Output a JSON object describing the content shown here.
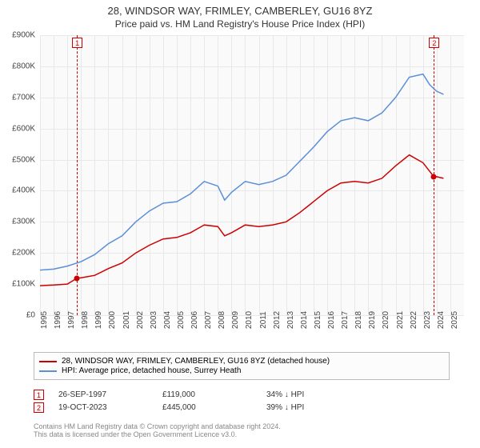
{
  "title": {
    "main": "28, WINDSOR WAY, FRIMLEY, CAMBERLEY, GU16 8YZ",
    "sub": "Price paid vs. HM Land Registry's House Price Index (HPI)"
  },
  "chart": {
    "type": "line",
    "background_color": "#fafafa",
    "grid_color": "#e8e8e8",
    "y": {
      "min": 0,
      "max": 900000,
      "step": 100000,
      "ticks": [
        0,
        100000,
        200000,
        300000,
        400000,
        500000,
        600000,
        700000,
        800000,
        900000
      ],
      "labels": [
        "£0",
        "£100K",
        "£200K",
        "£300K",
        "£400K",
        "£500K",
        "£600K",
        "£700K",
        "£800K",
        "£900K"
      ]
    },
    "x": {
      "min": 1995,
      "max": 2026,
      "ticks": [
        1995,
        1996,
        1997,
        1998,
        1999,
        2000,
        2001,
        2002,
        2003,
        2004,
        2005,
        2006,
        2007,
        2008,
        2009,
        2010,
        2011,
        2012,
        2013,
        2014,
        2015,
        2016,
        2017,
        2018,
        2019,
        2020,
        2021,
        2022,
        2023,
        2024,
        2025
      ],
      "labels": [
        "1995",
        "1996",
        "1997",
        "1998",
        "1999",
        "2000",
        "2001",
        "2002",
        "2003",
        "2004",
        "2005",
        "2006",
        "2007",
        "2008",
        "2009",
        "2010",
        "2011",
        "2012",
        "2013",
        "2014",
        "2015",
        "2016",
        "2017",
        "2018",
        "2019",
        "2020",
        "2021",
        "2022",
        "2023",
        "2024",
        "2025"
      ]
    },
    "series": [
      {
        "id": "property",
        "label": "28, WINDSOR WAY, FRIMLEY, CAMBERLEY, GU16 8YZ (detached house)",
        "color": "#cc0000",
        "line_width": 1.5,
        "points": [
          [
            1995,
            95000
          ],
          [
            1996,
            97000
          ],
          [
            1997,
            100000
          ],
          [
            1997.7,
            119000
          ],
          [
            1998,
            120000
          ],
          [
            1999,
            128000
          ],
          [
            2000,
            150000
          ],
          [
            2001,
            168000
          ],
          [
            2002,
            200000
          ],
          [
            2003,
            225000
          ],
          [
            2004,
            245000
          ],
          [
            2005,
            250000
          ],
          [
            2006,
            265000
          ],
          [
            2007,
            290000
          ],
          [
            2008,
            285000
          ],
          [
            2008.5,
            255000
          ],
          [
            2009,
            265000
          ],
          [
            2010,
            290000
          ],
          [
            2011,
            285000
          ],
          [
            2012,
            290000
          ],
          [
            2013,
            300000
          ],
          [
            2014,
            330000
          ],
          [
            2015,
            365000
          ],
          [
            2016,
            400000
          ],
          [
            2017,
            425000
          ],
          [
            2018,
            430000
          ],
          [
            2019,
            425000
          ],
          [
            2020,
            440000
          ],
          [
            2021,
            480000
          ],
          [
            2022,
            515000
          ],
          [
            2023,
            490000
          ],
          [
            2023.8,
            445000
          ],
          [
            2024,
            445000
          ],
          [
            2024.5,
            440000
          ]
        ]
      },
      {
        "id": "hpi",
        "label": "HPI: Average price, detached house, Surrey Heath",
        "color": "#5b8fd6",
        "line_width": 1.5,
        "points": [
          [
            1995,
            145000
          ],
          [
            1996,
            148000
          ],
          [
            1997,
            158000
          ],
          [
            1998,
            172000
          ],
          [
            1999,
            195000
          ],
          [
            2000,
            230000
          ],
          [
            2001,
            255000
          ],
          [
            2002,
            300000
          ],
          [
            2003,
            335000
          ],
          [
            2004,
            360000
          ],
          [
            2005,
            365000
          ],
          [
            2006,
            390000
          ],
          [
            2007,
            430000
          ],
          [
            2008,
            415000
          ],
          [
            2008.5,
            370000
          ],
          [
            2009,
            395000
          ],
          [
            2010,
            430000
          ],
          [
            2011,
            420000
          ],
          [
            2012,
            430000
          ],
          [
            2013,
            450000
          ],
          [
            2014,
            495000
          ],
          [
            2015,
            540000
          ],
          [
            2016,
            590000
          ],
          [
            2017,
            625000
          ],
          [
            2018,
            635000
          ],
          [
            2019,
            625000
          ],
          [
            2020,
            650000
          ],
          [
            2021,
            700000
          ],
          [
            2022,
            765000
          ],
          [
            2023,
            775000
          ],
          [
            2023.5,
            740000
          ],
          [
            2024,
            720000
          ],
          [
            2024.5,
            710000
          ]
        ]
      }
    ],
    "markers": [
      {
        "num": "1",
        "year": 1997.7,
        "price": 119000,
        "dot_color": "#cc0000"
      },
      {
        "num": "2",
        "year": 2023.8,
        "price": 445000,
        "dot_color": "#cc0000"
      }
    ]
  },
  "legend": {
    "items": [
      {
        "color": "#cc0000",
        "label": "28, WINDSOR WAY, FRIMLEY, CAMBERLEY, GU16 8YZ (detached house)"
      },
      {
        "color": "#5b8fd6",
        "label": "HPI: Average price, detached house, Surrey Heath"
      }
    ]
  },
  "table": {
    "rows": [
      {
        "num": "1",
        "date": "26-SEP-1997",
        "price": "£119,000",
        "delta": "34% ↓ HPI"
      },
      {
        "num": "2",
        "date": "19-OCT-2023",
        "price": "£445,000",
        "delta": "39% ↓ HPI"
      }
    ]
  },
  "footnote": {
    "line1": "Contains HM Land Registry data © Crown copyright and database right 2024.",
    "line2": "This data is licensed under the Open Government Licence v3.0."
  }
}
